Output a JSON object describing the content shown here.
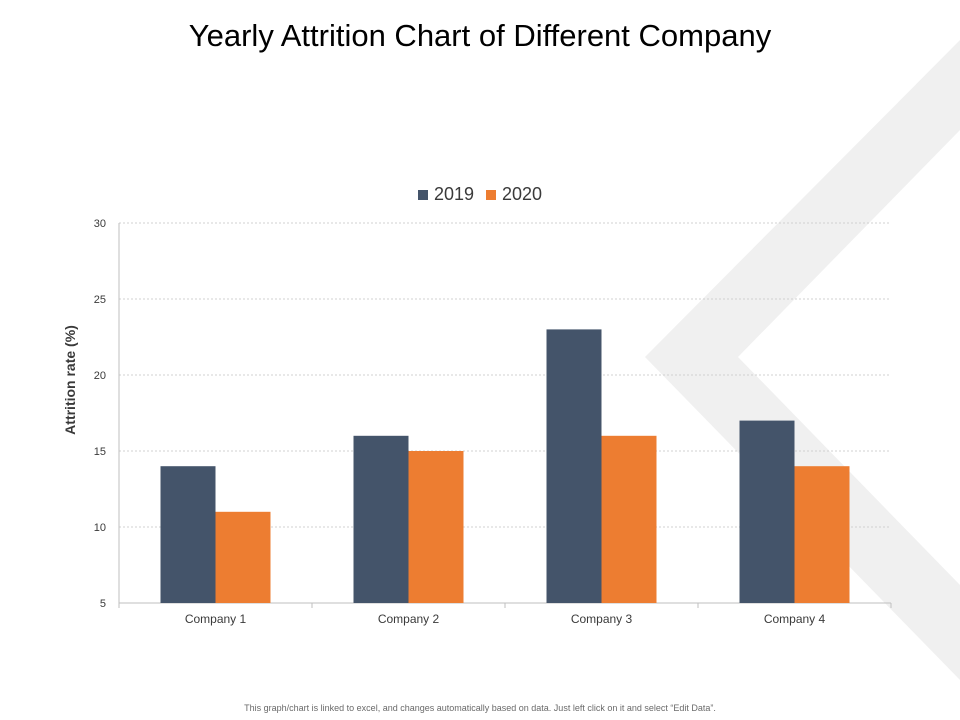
{
  "page": {
    "title": "Yearly Attrition Chart of Different Company",
    "footnote": "This graph/chart is linked to excel, and changes automatically based on data. Just left click on it and select “Edit Data”."
  },
  "chart_data": {
    "type": "bar",
    "title": "Yearly Attrition Chart of Different Company",
    "xlabel": "",
    "ylabel": "Attrition rate (%)",
    "categories": [
      "Company 1",
      "Company 2",
      "Company 3",
      "Company 4"
    ],
    "series": [
      {
        "name": "2019",
        "values": [
          14,
          16,
          23,
          17
        ],
        "color": "#44546a"
      },
      {
        "name": "2020",
        "values": [
          11,
          15,
          16,
          14
        ],
        "color": "#ed7d31"
      }
    ],
    "ylim": [
      5,
      30
    ],
    "yticks": [
      5,
      10,
      15,
      20,
      25,
      30
    ],
    "grid": true,
    "legend_position": "top-center"
  }
}
